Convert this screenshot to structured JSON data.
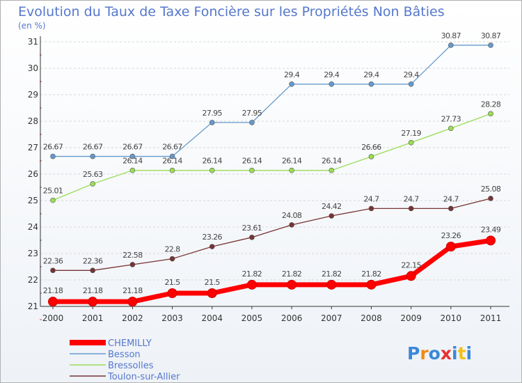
{
  "chart_data": {
    "type": "line",
    "title": "Evolution du Taux de Taxe Foncière sur les Propriétés Non Bâties",
    "subtitle": "(en %)",
    "x": [
      "2000",
      "2001",
      "2002",
      "2003",
      "2004",
      "2005",
      "2006",
      "2007",
      "2008",
      "2009",
      "2010",
      "2011"
    ],
    "ylim": [
      21,
      31
    ],
    "yticks": [
      "21",
      "22",
      "23",
      "24",
      "25",
      "26",
      "27",
      "28",
      "29",
      "30",
      "31"
    ],
    "grid": "horizontal dashed",
    "legend_position": "bottom-left",
    "series": [
      {
        "name": "CHEMILLY",
        "color": "#ff0000",
        "values": [
          21.18,
          21.18,
          21.18,
          21.5,
          21.5,
          21.82,
          21.82,
          21.82,
          21.82,
          22.15,
          23.26,
          23.49
        ],
        "labels": [
          "21.18",
          "21.18",
          "21.18",
          "21.5",
          "21.5",
          "21.82",
          "21.82",
          "21.82",
          "21.82",
          "22.15",
          "23.26",
          "23.49"
        ]
      },
      {
        "name": "Besson",
        "color": "#6699cc",
        "values": [
          26.67,
          26.67,
          26.67,
          26.67,
          27.95,
          27.95,
          29.4,
          29.4,
          29.4,
          29.4,
          30.87,
          30.87
        ],
        "labels": [
          "26.67",
          "26.67",
          "26.67",
          "26.67",
          "27.95",
          "27.95",
          "29.4",
          "29.4",
          "29.4",
          "29.4",
          "30.87",
          "30.87"
        ]
      },
      {
        "name": "Bressolles",
        "color": "#99dd55",
        "values": [
          25.01,
          25.63,
          26.14,
          26.14,
          26.14,
          26.14,
          26.14,
          26.14,
          26.66,
          27.19,
          27.73,
          28.28
        ],
        "labels": [
          "25.01",
          "25.63",
          "26.14",
          "26.14",
          "26.14",
          "26.14",
          "26.14",
          "26.14",
          "26.66",
          "27.19",
          "27.73",
          "28.28"
        ]
      },
      {
        "name": "Toulon-sur-Allier",
        "color": "#773333",
        "values": [
          22.36,
          22.36,
          22.58,
          22.8,
          23.26,
          23.61,
          24.08,
          24.42,
          24.7,
          24.7,
          24.7,
          25.08
        ],
        "labels": [
          "22.36",
          "22.36",
          "22.58",
          "22.8",
          "23.26",
          "23.61",
          "24.08",
          "24.42",
          "24.7",
          "24.7",
          "24.7",
          "25.08"
        ]
      }
    ]
  },
  "logo": {
    "text": "Proxiti"
  }
}
